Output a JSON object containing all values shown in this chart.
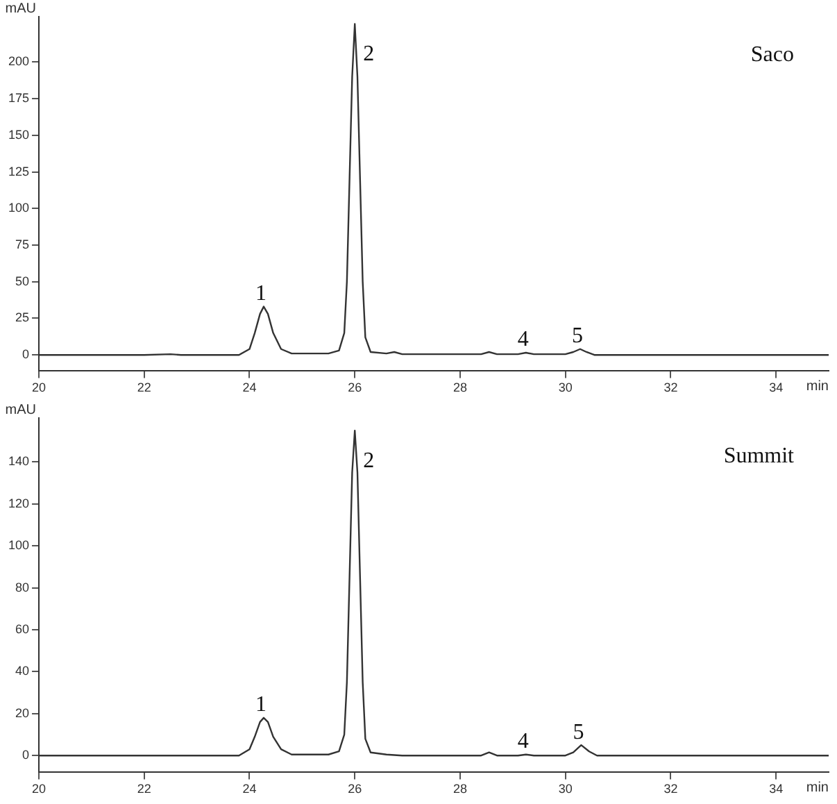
{
  "chart_data": [
    {
      "type": "line",
      "xlabel": "min",
      "ylabel": "mAU",
      "xlim": [
        20,
        35
      ],
      "xticks": [
        20,
        22,
        24,
        26,
        28,
        30,
        32,
        34
      ],
      "ylim": [
        -11,
        231
      ],
      "yticks": [
        0,
        25,
        50,
        75,
        100,
        125,
        150,
        175,
        200
      ],
      "series": [
        {
          "color": "#333333",
          "x": [
            20,
            22,
            22.5,
            22.7,
            23.8,
            24.0,
            24.1,
            24.2,
            24.27,
            24.35,
            24.45,
            24.6,
            24.8,
            25.5,
            25.7,
            25.8,
            25.85,
            25.9,
            25.95,
            26.0,
            26.05,
            26.1,
            26.15,
            26.2,
            26.3,
            26.6,
            26.75,
            26.9,
            28.4,
            28.55,
            28.7,
            29.1,
            29.25,
            29.4,
            30.0,
            30.15,
            30.28,
            30.4,
            30.55,
            35
          ],
          "values": [
            0,
            0,
            0.5,
            0,
            0,
            4,
            15,
            28,
            33,
            28,
            15,
            4,
            1,
            1,
            3,
            15,
            50,
            120,
            190,
            226,
            190,
            120,
            50,
            12,
            2,
            1,
            2,
            0.5,
            0.5,
            2,
            0.5,
            0.5,
            1.5,
            0.5,
            0.5,
            2,
            4,
            2,
            0,
            0
          ]
        }
      ],
      "annotations": [
        {
          "text": "1",
          "x": 24.27,
          "y": 33
        },
        {
          "text": "2",
          "x": 26.0,
          "y": 226
        },
        {
          "text": "4",
          "x": 29.25,
          "y": 1.5
        },
        {
          "text": "5",
          "x": 30.28,
          "y": 4
        },
        "Saco"
      ]
    },
    {
      "type": "line",
      "xlabel": "min",
      "ylabel": "mAU",
      "xlim": [
        20,
        35
      ],
      "xticks": [
        20,
        22,
        24,
        26,
        28,
        30,
        32,
        34
      ],
      "ylim": [
        -8,
        161
      ],
      "yticks": [
        0,
        20,
        40,
        60,
        80,
        100,
        120,
        140
      ],
      "series": [
        {
          "color": "#333333",
          "x": [
            20,
            22,
            23.8,
            24.0,
            24.1,
            24.2,
            24.27,
            24.35,
            24.45,
            24.6,
            24.8,
            25.5,
            25.7,
            25.8,
            25.85,
            25.9,
            25.95,
            26.0,
            26.05,
            26.1,
            26.15,
            26.2,
            26.3,
            26.6,
            26.9,
            28.4,
            28.55,
            28.7,
            29.1,
            29.25,
            29.4,
            30.0,
            30.15,
            30.3,
            30.45,
            30.6,
            35
          ],
          "values": [
            0,
            0,
            0,
            3,
            9,
            16,
            18,
            16,
            9,
            3,
            0.5,
            0.5,
            2,
            10,
            35,
            85,
            135,
            155,
            135,
            85,
            35,
            8,
            1.5,
            0.5,
            0,
            0,
            1.5,
            0,
            0,
            0.5,
            0,
            0,
            1.5,
            5,
            2,
            0,
            0
          ]
        }
      ],
      "annotations": [
        {
          "text": "1",
          "x": 24.27,
          "y": 18
        },
        {
          "text": "2",
          "x": 26.0,
          "y": 155
        },
        {
          "text": "4",
          "x": 29.25,
          "y": 0.5
        },
        {
          "text": "5",
          "x": 30.3,
          "y": 5
        },
        "Summit"
      ]
    }
  ]
}
